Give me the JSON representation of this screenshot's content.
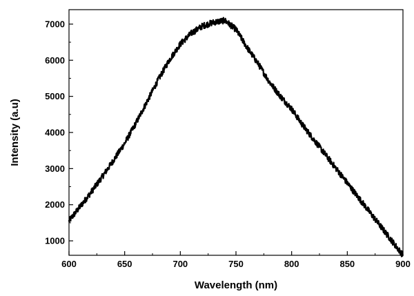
{
  "chart_data": {
    "type": "line",
    "title": "",
    "xlabel": "Wavelength (nm)",
    "ylabel": "Intensity (a.u)",
    "xlim": [
      600,
      900
    ],
    "ylim": [
      600,
      7400
    ],
    "x_ticks": [
      600,
      650,
      700,
      750,
      800,
      850,
      900
    ],
    "y_ticks": [
      1000,
      2000,
      3000,
      4000,
      5000,
      6000,
      7000
    ],
    "grid": false,
    "legend": "none",
    "line_color": "#000000",
    "series": [
      {
        "x": [
          600,
          610,
          620,
          630,
          640,
          650,
          660,
          670,
          680,
          690,
          700,
          710,
          720,
          730,
          740,
          750,
          760,
          770,
          780,
          790,
          800,
          810,
          820,
          830,
          840,
          850,
          860,
          870,
          880,
          890,
          900
        ],
        "values": [
          1550,
          1950,
          2350,
          2780,
          3230,
          3700,
          4250,
          4850,
          5450,
          6000,
          6450,
          6750,
          6950,
          7050,
          7100,
          6850,
          6350,
          5900,
          5400,
          5000,
          4650,
          4200,
          3800,
          3400,
          3000,
          2600,
          2200,
          1800,
          1400,
          1000,
          600
        ]
      }
    ]
  }
}
